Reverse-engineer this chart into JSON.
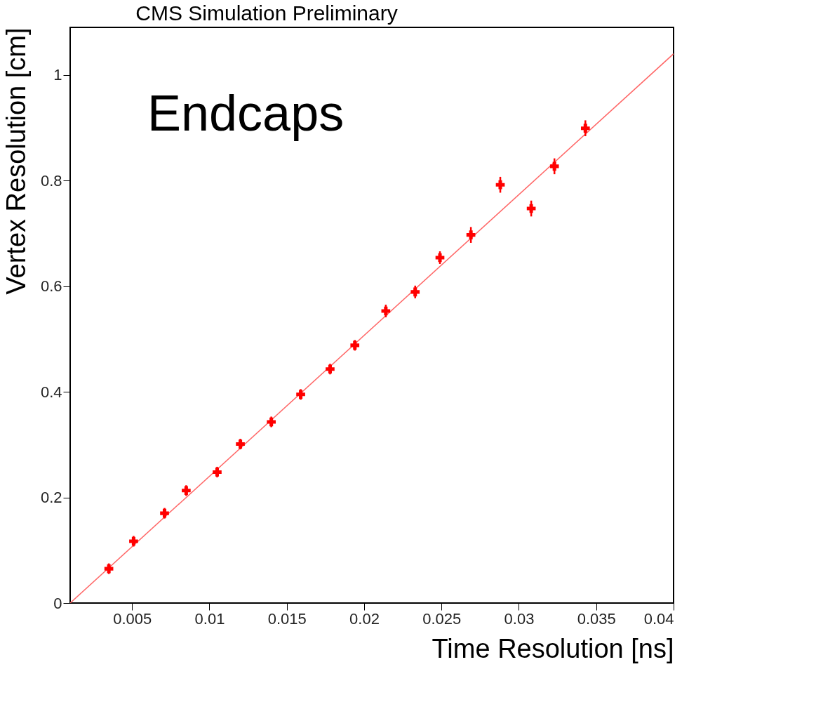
{
  "chart_data": {
    "type": "scatter",
    "title": "CMS Simulation Preliminary",
    "xlabel": "Time Resolution [ns]",
    "ylabel": "Vertex Resolution [cm]",
    "annotations": [
      "Endcaps"
    ],
    "xlim": [
      0.001,
      0.04
    ],
    "xticks": [
      0.005,
      0.01,
      0.015,
      0.02,
      0.025,
      0.03,
      0.035,
      0.04
    ],
    "ylim": [
      0,
      1.09
    ],
    "yticks": [
      0,
      0.2,
      0.4,
      0.6,
      0.8,
      1
    ],
    "grid": false,
    "series": [
      {
        "type": "line",
        "color": "#ff6666",
        "x": [
          0.001,
          0.04
        ],
        "values": [
          0,
          1.04
        ],
        "line_style": "solid"
      },
      {
        "color": "#ff0000",
        "marker": "cross",
        "x": [
          0.0035,
          0.0051,
          0.0071,
          0.0085,
          0.0105,
          0.012,
          0.014,
          0.0159,
          0.0178,
          0.0194,
          0.0214,
          0.0233,
          0.0249,
          0.0269,
          0.0288,
          0.0308,
          0.0323,
          0.0343
        ],
        "values": [
          0.065,
          0.117,
          0.17,
          0.213,
          0.248,
          0.301,
          0.343,
          0.395,
          0.443,
          0.488,
          0.553,
          0.589,
          0.654,
          0.697,
          0.792,
          0.747,
          0.827,
          0.899
        ],
        "errors": [
          0.01,
          0.01,
          0.01,
          0.01,
          0.01,
          0.01,
          0.01,
          0.01,
          0.01,
          0.01,
          0.012,
          0.012,
          0.012,
          0.015,
          0.015,
          0.015,
          0.015,
          0.015
        ]
      }
    ]
  }
}
